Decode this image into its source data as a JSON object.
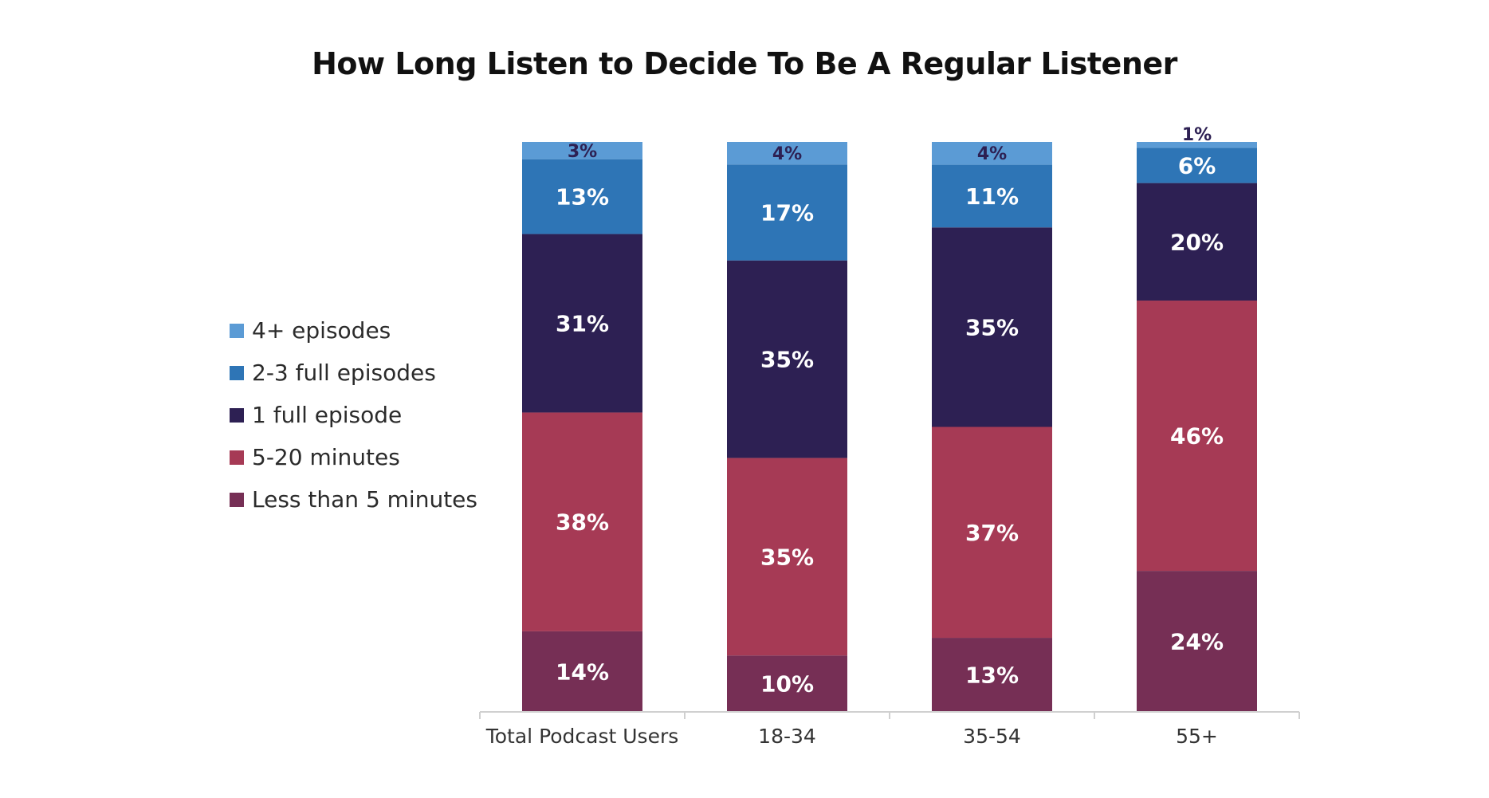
{
  "chart_data": {
    "type": "bar",
    "stacked": true,
    "title": "How Long Listen to Decide To Be A Regular Listener",
    "categories": [
      "Total Podcast Users",
      "18-34",
      "35-54",
      "55+"
    ],
    "series": [
      {
        "name": "Less than 5 minutes",
        "color": "#762f55",
        "values": [
          14,
          10,
          13,
          24
        ],
        "labels": [
          "14%",
          "10%",
          "13%",
          "24%"
        ]
      },
      {
        "name": "5-20 minutes",
        "color": "#a63a55",
        "values": [
          38,
          35,
          37,
          46
        ],
        "labels": [
          "38%",
          "35%",
          "37%",
          "46%"
        ]
      },
      {
        "name": "1 full episode",
        "color": "#2d2053",
        "values": [
          31,
          35,
          35,
          20
        ],
        "labels": [
          "31%",
          "35%",
          "35%",
          "20%"
        ]
      },
      {
        "name": "2-3 full episodes",
        "color": "#2e75b6",
        "values": [
          13,
          17,
          11,
          6
        ],
        "labels": [
          "13%",
          "17%",
          "11%",
          "6%"
        ]
      },
      {
        "name": "4+ episodes",
        "color": "#5b9bd5",
        "values": [
          3,
          4,
          4,
          1
        ],
        "labels": [
          "3%",
          "4%",
          "4%",
          "1%"
        ]
      }
    ],
    "legend_order": [
      "4+ episodes",
      "2-3 full episodes",
      "1 full episode",
      "5-20 minutes",
      "Less than 5 minutes"
    ],
    "legend_position": "left",
    "xlabel": "",
    "ylabel": "",
    "ylim": [
      0,
      100
    ],
    "grid": false
  }
}
